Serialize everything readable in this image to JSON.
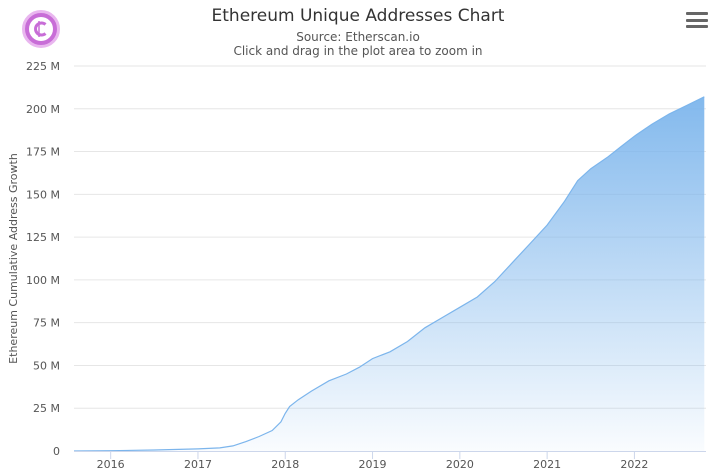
{
  "logo": {
    "icon": "c-coin-logo-icon",
    "color": "#c86dd7"
  },
  "menu": {
    "icon": "hamburger-menu-icon"
  },
  "title": "Ethereum Unique Addresses Chart",
  "source": "Source: Etherscan.io",
  "hint": "Click and drag in the plot area to zoom in",
  "chart_data": {
    "type": "area",
    "title": "Ethereum Unique Addresses Chart",
    "subtitle": "Source: Etherscan.io",
    "xlabel": "",
    "ylabel": "Ethereum Cumulative Address Growth",
    "xlim": [
      2015.58,
      2022.82
    ],
    "ylim": [
      0,
      225000000
    ],
    "x_ticks": [
      2016,
      2017,
      2018,
      2019,
      2020,
      2021,
      2022
    ],
    "x_tick_labels": [
      "2016",
      "2017",
      "2018",
      "2019",
      "2020",
      "2021",
      "2022"
    ],
    "y_ticks": [
      0,
      25000000,
      50000000,
      75000000,
      100000000,
      125000000,
      150000000,
      175000000,
      200000000,
      225000000
    ],
    "y_tick_labels": [
      "0",
      "25 M",
      "50 M",
      "75 M",
      "100 M",
      "125 M",
      "150 M",
      "175 M",
      "200 M",
      "225 M"
    ],
    "grid": true,
    "legend": "none",
    "line_color": "#7cb5ec",
    "series": [
      {
        "x": [
          2015.58,
          2016.0,
          2016.5,
          2017.0,
          2017.25,
          2017.4,
          2017.55,
          2017.7,
          2017.85,
          2017.95,
          2018.0,
          2018.05,
          2018.15,
          2018.3,
          2018.5,
          2018.7,
          2018.85,
          2019.0,
          2019.2,
          2019.4,
          2019.6,
          2019.8,
          2020.0,
          2020.2,
          2020.4,
          2020.6,
          2020.8,
          2021.0,
          2021.2,
          2021.35,
          2021.5,
          2021.7,
          2021.85,
          2022.0,
          2022.2,
          2022.4,
          2022.6,
          2022.8
        ],
        "y": [
          0,
          200000,
          600000,
          1200000,
          1800000,
          3000000,
          5500000,
          8500000,
          12000000,
          17000000,
          22000000,
          26000000,
          30000000,
          35000000,
          41000000,
          45000000,
          49000000,
          54000000,
          58000000,
          64000000,
          72000000,
          78000000,
          84000000,
          90000000,
          99000000,
          110000000,
          121000000,
          132000000,
          146000000,
          158000000,
          165000000,
          172000000,
          178000000,
          184000000,
          191000000,
          197000000,
          202000000,
          207000000
        ]
      }
    ]
  }
}
